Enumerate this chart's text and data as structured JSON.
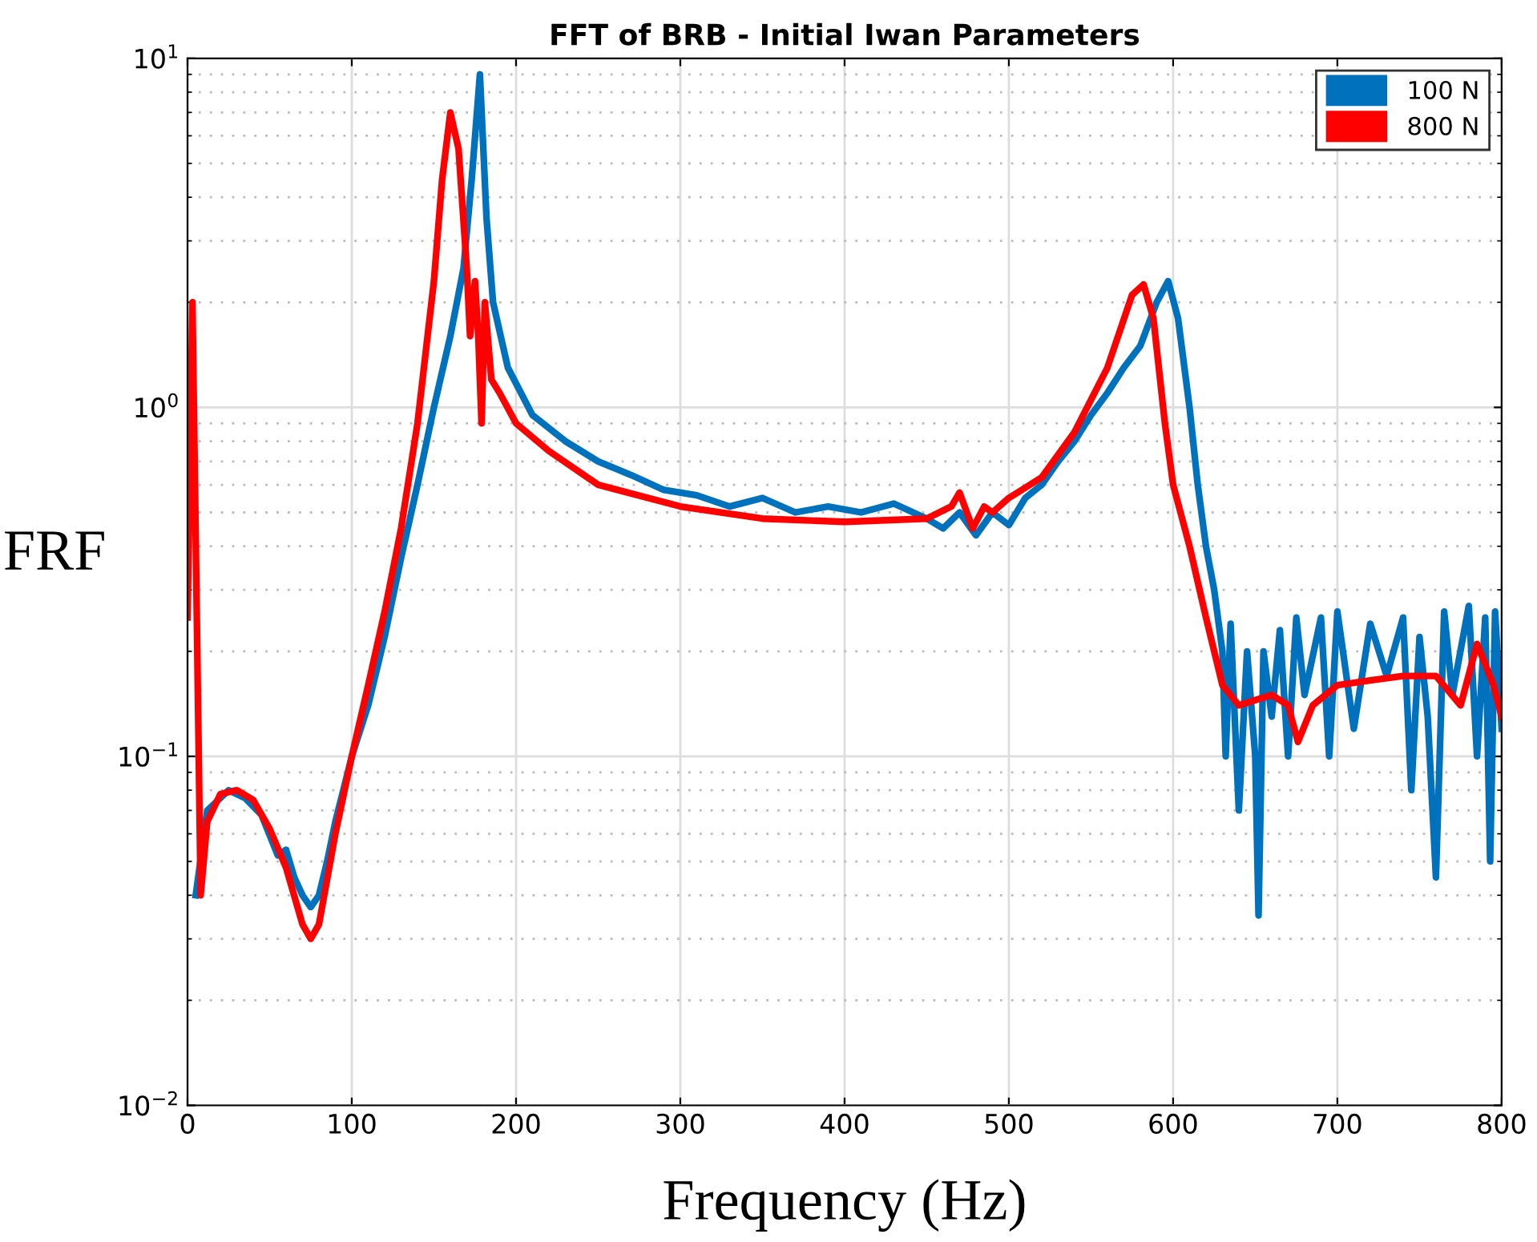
{
  "chart_data": {
    "type": "line",
    "title": "FFT of BRB - Initial Iwan Parameters",
    "xlabel": "Frequency (Hz)",
    "ylabel": "FRF",
    "xlim": [
      0,
      800
    ],
    "xticks": [
      0,
      100,
      200,
      300,
      400,
      500,
      600,
      700,
      800
    ],
    "ylim": [
      0.01,
      10
    ],
    "yticks": [
      {
        "value": 0.01,
        "label": "10$^{−2}$"
      },
      {
        "value": 0.1,
        "label": "10$^{−1}$"
      },
      {
        "value": 1,
        "label": "10$^{0}$"
      },
      {
        "value": 10,
        "label": "10$^{1}$"
      }
    ],
    "log": "y",
    "grid": true,
    "legend": "top right",
    "marker": "none",
    "line_style": "solid",
    "series": [
      {
        "name": "100 N",
        "color": "#0072bd",
        "x": [
          5,
          12,
          25,
          35,
          45,
          55,
          60,
          65,
          70,
          75,
          80,
          85,
          90,
          100,
          110,
          120,
          130,
          140,
          150,
          160,
          168,
          173,
          178,
          182,
          186,
          195,
          210,
          230,
          250,
          270,
          290,
          310,
          330,
          350,
          370,
          390,
          410,
          430,
          450,
          460,
          470,
          480,
          490,
          500,
          510,
          520,
          530,
          540,
          550,
          560,
          570,
          580,
          590,
          597,
          603,
          610,
          615,
          620,
          625,
          630,
          632,
          635,
          640,
          645,
          650,
          652,
          655,
          660,
          665,
          670,
          675,
          680,
          690,
          695,
          700,
          710,
          720,
          730,
          740,
          745,
          750,
          755,
          760,
          765,
          770,
          780,
          785,
          790,
          793,
          796,
          800
        ],
        "values": [
          0.04,
          0.07,
          0.08,
          0.076,
          0.068,
          0.052,
          0.054,
          0.045,
          0.04,
          0.037,
          0.04,
          0.05,
          0.065,
          0.1,
          0.14,
          0.22,
          0.37,
          0.6,
          1.0,
          1.6,
          2.5,
          4.5,
          9.0,
          3.5,
          2.0,
          1.3,
          0.95,
          0.8,
          0.7,
          0.64,
          0.58,
          0.56,
          0.52,
          0.55,
          0.5,
          0.52,
          0.5,
          0.53,
          0.48,
          0.45,
          0.5,
          0.43,
          0.5,
          0.46,
          0.55,
          0.6,
          0.7,
          0.8,
          0.95,
          1.1,
          1.3,
          1.5,
          2.0,
          2.3,
          1.8,
          1.0,
          0.6,
          0.4,
          0.3,
          0.2,
          0.1,
          0.24,
          0.07,
          0.2,
          0.1,
          0.035,
          0.2,
          0.13,
          0.23,
          0.1,
          0.25,
          0.15,
          0.25,
          0.1,
          0.26,
          0.12,
          0.24,
          0.17,
          0.25,
          0.08,
          0.22,
          0.13,
          0.045,
          0.26,
          0.15,
          0.27,
          0.1,
          0.25,
          0.05,
          0.26,
          0.12
        ]
      },
      {
        "name": "800 N",
        "color": "#ff0000",
        "x": [
          0,
          3,
          8,
          12,
          20,
          30,
          40,
          50,
          60,
          70,
          75,
          80,
          90,
          100,
          110,
          120,
          130,
          140,
          150,
          155,
          160,
          165,
          170,
          172,
          175,
          177,
          179,
          181,
          185,
          190,
          200,
          220,
          250,
          300,
          350,
          400,
          450,
          465,
          470,
          478,
          485,
          490,
          500,
          520,
          540,
          560,
          575,
          582,
          588,
          595,
          600,
          610,
          620,
          630,
          640,
          650,
          660,
          670,
          676,
          685,
          700,
          720,
          740,
          760,
          775,
          785,
          795,
          800
        ],
        "values": [
          0.25,
          2.0,
          0.04,
          0.065,
          0.078,
          0.08,
          0.075,
          0.062,
          0.048,
          0.033,
          0.03,
          0.033,
          0.06,
          0.1,
          0.16,
          0.26,
          0.45,
          0.9,
          2.3,
          4.5,
          7.0,
          5.5,
          2.5,
          1.6,
          2.3,
          1.6,
          0.9,
          2.0,
          1.2,
          1.1,
          0.9,
          0.75,
          0.6,
          0.52,
          0.48,
          0.47,
          0.48,
          0.52,
          0.57,
          0.45,
          0.52,
          0.5,
          0.55,
          0.63,
          0.85,
          1.3,
          2.1,
          2.25,
          1.8,
          0.9,
          0.6,
          0.4,
          0.25,
          0.16,
          0.14,
          0.145,
          0.15,
          0.14,
          0.11,
          0.14,
          0.16,
          0.165,
          0.17,
          0.17,
          0.14,
          0.21,
          0.16,
          0.13
        ]
      }
    ]
  }
}
